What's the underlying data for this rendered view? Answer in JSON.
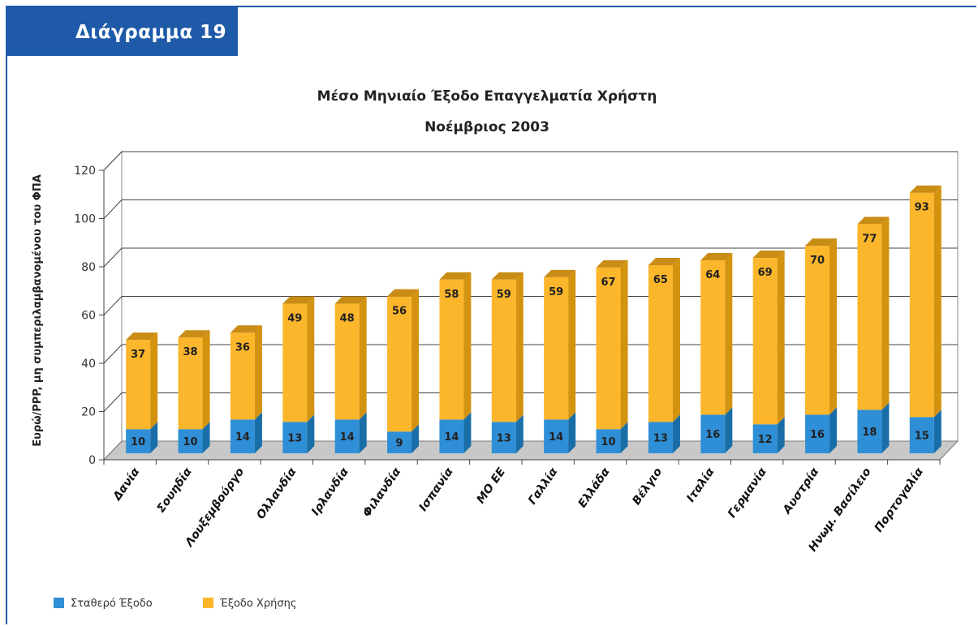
{
  "badge_label": "Διάγραμμα 19",
  "colors": {
    "frame": "#1e5aa8",
    "fixed": "#2e8fd6",
    "usage": "#fbb62b"
  },
  "chart_data": {
    "type": "bar",
    "stacked": true,
    "three_d": true,
    "title": "Μέσο Μηνιαίο Έξοδο Επαγγελματία Χρήστη",
    "subtitle": "Νοέμβριος 2003",
    "xlabel": "",
    "ylabel": "Ευρώ/PPP, μη συμπεριλαμβανομένου του ΦΠΑ",
    "ylim": [
      0,
      120
    ],
    "yticks": [
      "0",
      "20",
      "40",
      "60",
      "80",
      "100",
      "120"
    ],
    "grid": true,
    "legend_position": "bottom-left",
    "categories": [
      "Δανία",
      "Σουηδία",
      "Λουξεμβούργο",
      "Ολλανδία",
      "Ιρλανδία",
      "Φιλανδία",
      "Ισπανία",
      "ΜΟ ΕΕ",
      "Γαλλία",
      "Ελλάδα",
      "Βέλγιο",
      "Ιταλία",
      "Γερμανία",
      "Αυστρία",
      "Ηνωμ. Βασίλειο",
      "Πορτογαλία"
    ],
    "series": [
      {
        "name": "Σταθερό Έξοδο",
        "values": [
          10,
          10,
          14,
          13,
          14,
          9,
          14,
          13,
          14,
          10,
          13,
          16,
          12,
          16,
          18,
          15
        ]
      },
      {
        "name": "Έξοδο Χρήσης",
        "values": [
          37,
          38,
          36,
          49,
          48,
          56,
          58,
          59,
          59,
          67,
          65,
          64,
          69,
          70,
          77,
          93
        ]
      }
    ]
  }
}
